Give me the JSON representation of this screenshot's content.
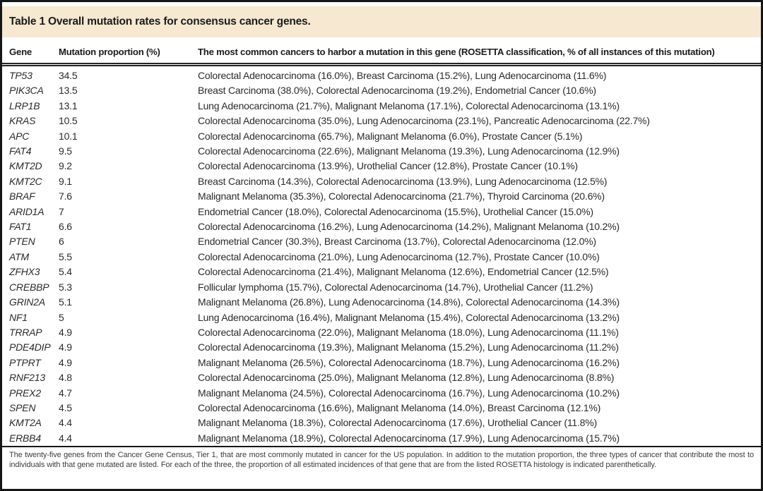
{
  "title": "Table 1 Overall mutation rates for consensus cancer genes.",
  "columns": [
    "Gene",
    "Mutation proportion (%)",
    "The most common cancers to harbor a mutation in this gene (ROSETTA classification, % of all instances of this mutation)"
  ],
  "rows": [
    {
      "gene": "TP53",
      "proportion": "34.5",
      "cancers": "Colorectal Adenocarcinoma (16.0%), Breast Carcinoma (15.2%), Lung Adenocarcinoma (11.6%)"
    },
    {
      "gene": "PIK3CA",
      "proportion": "13.5",
      "cancers": "Breast Carcinoma (38.0%), Colorectal Adenocarcinoma (19.2%), Endometrial Cancer (10.6%)"
    },
    {
      "gene": "LRP1B",
      "proportion": "13.1",
      "cancers": "Lung Adenocarcinoma (21.7%), Malignant Melanoma (17.1%), Colorectal Adenocarcinoma (13.1%)"
    },
    {
      "gene": "KRAS",
      "proportion": "10.5",
      "cancers": "Colorectal Adenocarcinoma (35.0%), Lung Adenocarcinoma (23.1%), Pancreatic Adenocarcinoma (22.7%)"
    },
    {
      "gene": "APC",
      "proportion": "10.1",
      "cancers": "Colorectal Adenocarcinoma (65.7%), Malignant Melanoma (6.0%), Prostate Cancer (5.1%)"
    },
    {
      "gene": "FAT4",
      "proportion": "9.5",
      "cancers": "Colorectal Adenocarcinoma (22.6%), Malignant Melanoma (19.3%), Lung Adenocarcinoma (12.9%)"
    },
    {
      "gene": "KMT2D",
      "proportion": "9.2",
      "cancers": "Colorectal Adenocarcinoma (13.9%), Urothelial Cancer (12.8%), Prostate Cancer (10.1%)"
    },
    {
      "gene": "KMT2C",
      "proportion": "9.1",
      "cancers": "Breast Carcinoma (14.3%), Colorectal Adenocarcinoma (13.9%), Lung Adenocarcinoma (12.5%)"
    },
    {
      "gene": "BRAF",
      "proportion": "7.6",
      "cancers": "Malignant Melanoma (35.3%), Colorectal Adenocarcinoma (21.7%), Thyroid Carcinoma (20.6%)"
    },
    {
      "gene": "ARID1A",
      "proportion": "7",
      "cancers": "Endometrial Cancer (18.0%), Colorectal Adenocarcinoma (15.5%), Urothelial Cancer (15.0%)"
    },
    {
      "gene": "FAT1",
      "proportion": "6.6",
      "cancers": "Colorectal Adenocarcinoma (16.2%), Lung Adenocarcinoma (14.2%), Malignant Melanoma (10.2%)"
    },
    {
      "gene": "PTEN",
      "proportion": "6",
      "cancers": "Endometrial Cancer (30.3%), Breast Carcinoma (13.7%), Colorectal Adenocarcinoma (12.0%)"
    },
    {
      "gene": "ATM",
      "proportion": "5.5",
      "cancers": "Colorectal Adenocarcinoma (21.0%), Lung Adenocarcinoma (12.7%), Prostate Cancer (10.0%)"
    },
    {
      "gene": "ZFHX3",
      "proportion": "5.4",
      "cancers": "Colorectal Adenocarcinoma (21.4%), Malignant Melanoma (12.6%), Endometrial Cancer (12.5%)"
    },
    {
      "gene": "CREBBP",
      "proportion": "5.3",
      "cancers": "Follicular lymphoma (15.7%), Colorectal Adenocarcinoma (14.7%), Urothelial Cancer (11.2%)"
    },
    {
      "gene": "GRIN2A",
      "proportion": "5.1",
      "cancers": "Malignant Melanoma (26.8%), Lung Adenocarcinoma (14.8%), Colorectal Adenocarcinoma (14.3%)"
    },
    {
      "gene": "NF1",
      "proportion": "5",
      "cancers": "Lung Adenocarcinoma (16.4%), Malignant Melanoma (15.4%), Colorectal Adenocarcinoma (13.2%)"
    },
    {
      "gene": "TRRAP",
      "proportion": "4.9",
      "cancers": "Colorectal Adenocarcinoma (22.0%), Malignant Melanoma (18.0%), Lung Adenocarcinoma (11.1%)"
    },
    {
      "gene": "PDE4DIP",
      "proportion": "4.9",
      "cancers": "Colorectal Adenocarcinoma (19.3%), Malignant Melanoma (15.2%), Lung Adenocarcinoma (11.2%)"
    },
    {
      "gene": "PTPRT",
      "proportion": "4.9",
      "cancers": "Malignant Melanoma (26.5%), Colorectal Adenocarcinoma (18.7%), Lung Adenocarcinoma (16.2%)"
    },
    {
      "gene": "RNF213",
      "proportion": "4.8",
      "cancers": "Colorectal Adenocarcinoma (25.0%), Malignant Melanoma (12.8%), Lung Adenocarcinoma (8.8%)"
    },
    {
      "gene": "PREX2",
      "proportion": "4.7",
      "cancers": "Malignant Melanoma (24.5%), Colorectal Adenocarcinoma (16.7%), Lung Adenocarcinoma (10.2%)"
    },
    {
      "gene": "SPEN",
      "proportion": "4.5",
      "cancers": "Colorectal Adenocarcinoma (16.6%), Malignant Melanoma (14.0%), Breast Carcinoma (12.1%)"
    },
    {
      "gene": "KMT2A",
      "proportion": "4.4",
      "cancers": "Malignant Melanoma (18.3%), Colorectal Adenocarcinoma (17.6%), Urothelial Cancer (11.8%)"
    },
    {
      "gene": "ERBB4",
      "proportion": "4.4",
      "cancers": "Malignant Melanoma (18.9%), Colorectal Adenocarcinoma (17.9%), Lung Adenocarcinoma (15.7%)"
    }
  ],
  "footnote": "The twenty-five genes from the Cancer Gene Census, Tier 1, that are most commonly mutated in cancer for the US population. In addition to the mutation proportion, the three types of cancer that contribute the most to individuals with that gene mutated are listed. For each of the three, the proportion of all estimated incidences of that gene that are from the listed ROSETTA histology is indicated parenthetically.",
  "colors": {
    "header_bg": "#f6e8d1",
    "border": "#161616",
    "text": "#2a2a2a"
  }
}
